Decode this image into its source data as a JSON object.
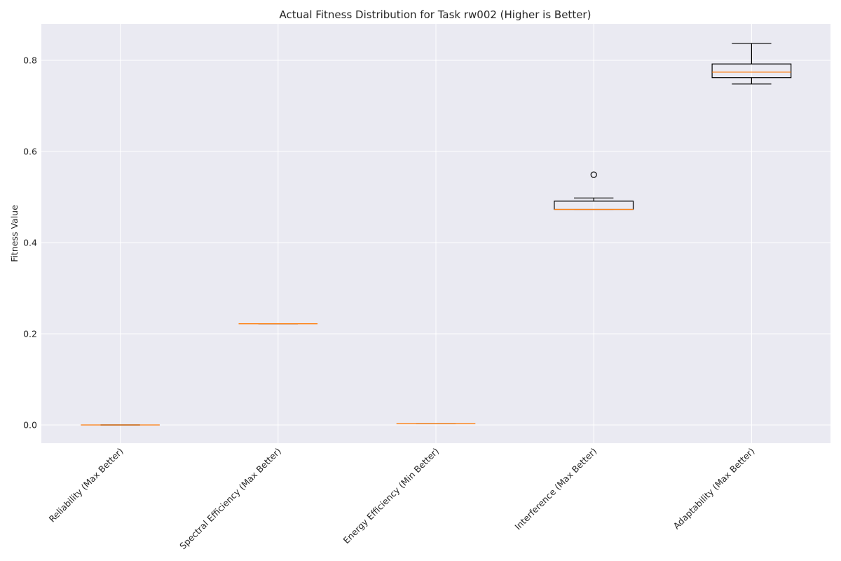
{
  "chart_data": {
    "type": "box",
    "title": "Actual Fitness Distribution for Task rw002 (Higher is Better)",
    "xlabel": "",
    "ylabel": "Fitness Value",
    "ylim": [
      -0.04,
      0.88
    ],
    "yticks": [
      0.0,
      0.2,
      0.4,
      0.6,
      0.8
    ],
    "ytick_labels": [
      "0.0",
      "0.2",
      "0.4",
      "0.6",
      "0.8"
    ],
    "grid": true,
    "categories": [
      "Reliability (Max Better)",
      "Spectral Efficiency (Max Better)",
      "Energy Efficiency (Min Better)",
      "Interference (Max Better)",
      "Adaptability (Max Better)"
    ],
    "boxes": [
      {
        "whisker_low": 0.0,
        "q1": 0.0,
        "median": 0.0,
        "q3": 0.0,
        "whisker_high": 0.0,
        "outliers": []
      },
      {
        "whisker_low": 0.222,
        "q1": 0.222,
        "median": 0.222,
        "q3": 0.222,
        "whisker_high": 0.222,
        "outliers": []
      },
      {
        "whisker_low": 0.003,
        "q1": 0.003,
        "median": 0.003,
        "q3": 0.003,
        "whisker_high": 0.003,
        "outliers": []
      },
      {
        "whisker_low": 0.473,
        "q1": 0.473,
        "median": 0.473,
        "q3": 0.491,
        "whisker_high": 0.498,
        "outliers": [
          0.549
        ]
      },
      {
        "whisker_low": 0.748,
        "q1": 0.762,
        "median": 0.774,
        "q3": 0.792,
        "whisker_high": 0.837,
        "outliers": []
      }
    ],
    "colors": {
      "plot_background": "#EAEAF2",
      "grid": "#FFFFFF",
      "box": "#000000",
      "median": "#FF7F0E",
      "text": "#262626"
    }
  }
}
